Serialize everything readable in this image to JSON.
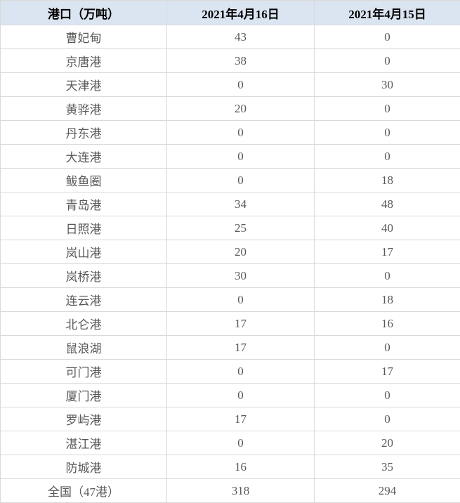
{
  "table": {
    "header": [
      "港口（万吨）",
      "2021年4月16日",
      "2021年4月15日"
    ],
    "rows": [
      [
        "曹妃甸",
        43,
        0
      ],
      [
        "京唐港",
        38,
        0
      ],
      [
        "天津港",
        0,
        30
      ],
      [
        "黄骅港",
        20,
        0
      ],
      [
        "丹东港",
        0,
        0
      ],
      [
        "大连港",
        0,
        0
      ],
      [
        "鲅鱼圈",
        0,
        18
      ],
      [
        "青岛港",
        34,
        48
      ],
      [
        "日照港",
        25,
        40
      ],
      [
        "岚山港",
        20,
        17
      ],
      [
        "岚桥港",
        30,
        0
      ],
      [
        "连云港",
        0,
        18
      ],
      [
        "北仑港",
        17,
        16
      ],
      [
        "鼠浪湖",
        17,
        0
      ],
      [
        "可门港",
        0,
        17
      ],
      [
        "厦门港",
        0,
        0
      ],
      [
        "罗屿港",
        17,
        0
      ],
      [
        "湛江港",
        0,
        20
      ],
      [
        "防城港",
        16,
        35
      ],
      [
        "全国（47港）",
        318,
        294
      ]
    ]
  }
}
